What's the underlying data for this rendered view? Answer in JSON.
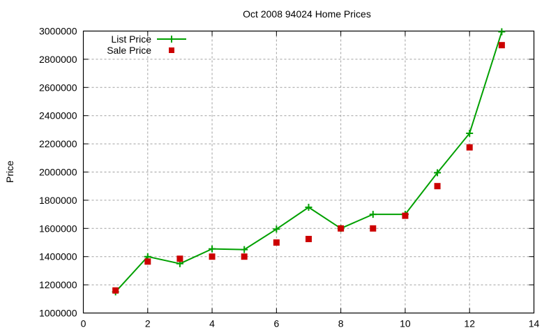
{
  "chart_data": {
    "type": "line",
    "title": "Oct 2008 94024 Home Prices",
    "xlabel": "",
    "ylabel": "Price",
    "xlim": [
      0,
      14
    ],
    "ylim": [
      1000000,
      3000000
    ],
    "x_ticks": [
      0,
      2,
      4,
      6,
      8,
      10,
      12,
      14
    ],
    "y_ticks": [
      1000000,
      1200000,
      1400000,
      1600000,
      1800000,
      2000000,
      2200000,
      2400000,
      2600000,
      2800000,
      3000000
    ],
    "grid": true,
    "legend_position": "top-left",
    "x": [
      1,
      2,
      3,
      4,
      5,
      6,
      7,
      8,
      9,
      10,
      11,
      12,
      13
    ],
    "series": [
      {
        "name": "List Price",
        "style": "lines+points",
        "marker": "plus",
        "color": "#00a000",
        "values": [
          1150000,
          1400000,
          1350000,
          1455000,
          1450000,
          1595000,
          1750000,
          1600000,
          1700000,
          1700000,
          1995000,
          2275000,
          2995000
        ]
      },
      {
        "name": "Sale Price",
        "style": "points",
        "marker": "square",
        "color": "#cc0000",
        "values": [
          1160000,
          1365000,
          1385000,
          1400000,
          1400000,
          1500000,
          1525000,
          1600000,
          1600000,
          1690000,
          1900000,
          2175000,
          2900000
        ]
      }
    ]
  },
  "legend": {
    "items": [
      {
        "label": "List Price"
      },
      {
        "label": "Sale Price"
      }
    ]
  }
}
